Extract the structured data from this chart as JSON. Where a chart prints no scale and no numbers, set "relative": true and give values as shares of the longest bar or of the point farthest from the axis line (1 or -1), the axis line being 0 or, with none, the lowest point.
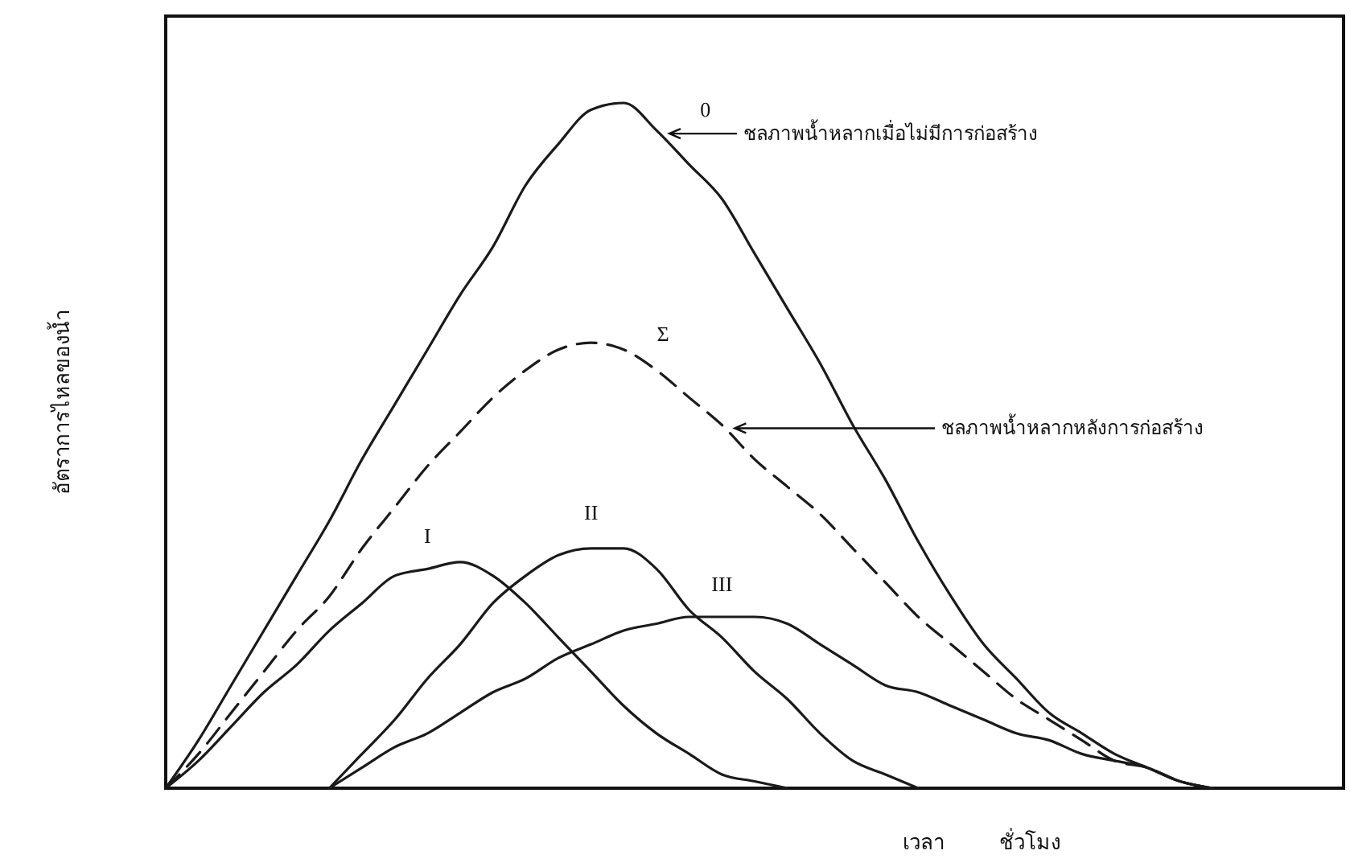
{
  "chart_data": {
    "type": "line",
    "relative": true,
    "xlabel": "เวลา ชั่วโมง",
    "ylabel": "อัตราการไหลของน้ำ",
    "categories": [
      null,
      null,
      null,
      null,
      null,
      null,
      null,
      null,
      null,
      null,
      null,
      null,
      null,
      null,
      null,
      null,
      null,
      null,
      null,
      null,
      null,
      null,
      null,
      null,
      null,
      null,
      null,
      null,
      null,
      null,
      null,
      null,
      null,
      null,
      null,
      null,
      null
    ],
    "annotations": [
      "ชลภาพน้ำหลากเมื่อไม่มีการก่อสร้าง",
      "ชลภาพน้ำหลากหลังการก่อสร้าง"
    ],
    "series": [
      {
        "name": "0",
        "color": "#1a1a1a",
        "line_style": "solid",
        "values": [
          0,
          0.07,
          0.15,
          0.23,
          0.31,
          0.39,
          0.48,
          0.56,
          0.64,
          0.72,
          0.79,
          0.88,
          0.94,
          0.99,
          1,
          0.96,
          0.91,
          0.86,
          0.78,
          0.7,
          0.62,
          0.53,
          0.45,
          0.36,
          0.28,
          0.21,
          0.16,
          0.11,
          0.08,
          0.05,
          0.03,
          0.01,
          0,
          null,
          null,
          null,
          null
        ]
      },
      {
        "name": "Σ",
        "color": "#1a1a1a",
        "line_style": "dashed",
        "values": [
          0,
          0.05,
          0.11,
          0.17,
          0.23,
          0.28,
          0.35,
          0.41,
          0.47,
          0.52,
          0.57,
          0.61,
          0.64,
          0.65,
          0.64,
          0.61,
          0.57,
          0.53,
          0.48,
          0.44,
          0.4,
          0.35,
          0.3,
          0.25,
          0.21,
          0.17,
          0.13,
          0.1,
          0.07,
          0.04,
          0.03,
          0.01,
          0,
          null,
          null,
          null,
          null
        ]
      },
      {
        "name": "I",
        "color": "#1a1a1a",
        "line_style": "solid",
        "values": [
          0,
          0.04,
          0.09,
          0.14,
          0.18,
          0.23,
          0.27,
          0.31,
          0.32,
          0.33,
          0.31,
          0.27,
          0.22,
          0.17,
          0.12,
          0.08,
          0.05,
          0.02,
          0.01,
          0,
          null,
          null,
          null,
          null,
          null,
          null,
          null,
          null,
          null,
          null,
          null,
          null,
          null,
          null,
          null,
          null,
          null
        ]
      },
      {
        "name": "II",
        "color": "#1a1a1a",
        "line_style": "solid",
        "values": [
          null,
          null,
          null,
          null,
          null,
          0,
          0.05,
          0.1,
          0.16,
          0.21,
          0.27,
          0.31,
          0.34,
          0.35,
          0.35,
          0.32,
          0.26,
          0.22,
          0.17,
          0.13,
          0.08,
          0.04,
          0.02,
          0,
          null,
          null,
          null,
          null,
          null,
          null,
          null,
          null,
          null,
          null,
          null,
          null,
          null
        ]
      },
      {
        "name": "III",
        "color": "#1a1a1a",
        "line_style": "solid",
        "values": [
          null,
          null,
          null,
          null,
          null,
          0,
          0.03,
          0.06,
          0.08,
          0.11,
          0.14,
          0.16,
          0.19,
          0.21,
          0.23,
          0.24,
          0.25,
          0.25,
          0.25,
          0.24,
          0.21,
          0.18,
          0.15,
          0.14,
          0.12,
          0.1,
          0.08,
          0.07,
          0.05,
          0.04,
          0.03,
          0.01,
          0,
          null,
          null,
          null,
          null
        ]
      }
    ]
  }
}
